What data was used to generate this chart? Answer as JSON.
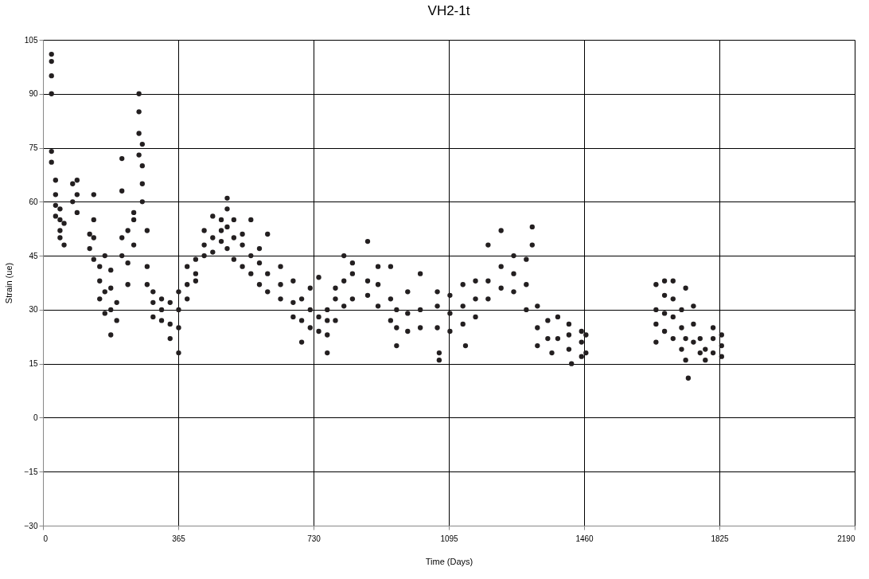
{
  "chart_data": {
    "type": "scatter",
    "title": "VH2-1t",
    "xlabel": "Time (Days)",
    "ylabel": "Strain (ue)",
    "xlim": [
      0,
      2190
    ],
    "xticks": [
      0,
      365,
      730,
      1095,
      1460,
      1825,
      2190
    ],
    "ylim": [
      -30,
      105
    ],
    "yticks": [
      -30,
      -15,
      0,
      15,
      30,
      45,
      60,
      75,
      90,
      105
    ],
    "grid": true,
    "marker": "circle",
    "series": [
      {
        "color": "#231f20",
        "x": [
          23,
          23,
          23,
          23,
          23,
          23,
          34,
          34,
          34,
          34,
          46,
          46,
          46,
          46,
          57,
          57,
          80,
          80,
          92,
          92,
          92,
          126,
          126,
          137,
          137,
          137,
          137,
          153,
          153,
          153,
          167,
          167,
          167,
          183,
          183,
          183,
          183,
          199,
          199,
          213,
          213,
          213,
          213,
          229,
          229,
          229,
          245,
          245,
          245,
          259,
          259,
          259,
          259,
          268,
          268,
          268,
          268,
          281,
          281,
          281,
          297,
          297,
          297,
          320,
          320,
          320,
          343,
          343,
          343,
          366,
          366,
          366,
          366,
          389,
          389,
          389,
          412,
          412,
          412,
          435,
          435,
          435,
          458,
          458,
          458,
          481,
          481,
          481,
          497,
          497,
          497,
          497,
          515,
          515,
          515,
          538,
          538,
          538,
          561,
          561,
          561,
          584,
          584,
          584,
          606,
          606,
          606,
          641,
          641,
          641,
          675,
          675,
          675,
          698,
          698,
          698,
          721,
          721,
          721,
          744,
          744,
          744,
          767,
          767,
          767,
          767,
          789,
          789,
          789,
          812,
          812,
          812,
          835,
          835,
          835,
          876,
          876,
          876,
          904,
          904,
          904,
          938,
          938,
          938,
          954,
          954,
          954,
          984,
          984,
          984,
          1018,
          1018,
          1018,
          1064,
          1064,
          1064,
          1069,
          1069,
          1098,
          1098,
          1098,
          1133,
          1133,
          1133,
          1140,
          1167,
          1167,
          1167,
          1201,
          1201,
          1201,
          1236,
          1236,
          1236,
          1270,
          1270,
          1270,
          1304,
          1304,
          1304,
          1320,
          1320,
          1334,
          1334,
          1334,
          1362,
          1362,
          1373,
          1389,
          1389,
          1419,
          1419,
          1419,
          1426,
          1453,
          1453,
          1453,
          1465,
          1465,
          1654,
          1654,
          1654,
          1654,
          1677,
          1677,
          1677,
          1677,
          1700,
          1700,
          1700,
          1700,
          1723,
          1723,
          1723,
          1734,
          1734,
          1734,
          1741,
          1755,
          1755,
          1755,
          1773,
          1773,
          1787,
          1787,
          1808,
          1808,
          1808,
          1831,
          1831,
          1831
        ],
        "values": [
          101,
          99,
          95,
          90,
          74,
          71,
          66,
          62,
          59,
          56,
          52,
          55,
          58,
          50,
          54,
          48,
          60,
          65,
          57,
          62,
          66,
          51,
          47,
          62,
          55,
          50,
          44,
          38,
          33,
          42,
          29,
          35,
          45,
          23,
          30,
          41,
          36,
          27,
          32,
          63,
          72,
          50,
          45,
          37,
          43,
          52,
          48,
          55,
          57,
          73,
          79,
          90,
          85,
          65,
          70,
          76,
          60,
          52,
          42,
          37,
          32,
          28,
          35,
          27,
          33,
          30,
          22,
          26,
          32,
          18,
          25,
          30,
          35,
          37,
          42,
          33,
          44,
          40,
          38,
          48,
          45,
          52,
          46,
          50,
          56,
          49,
          55,
          52,
          61,
          58,
          53,
          47,
          50,
          55,
          44,
          48,
          42,
          51,
          40,
          45,
          55,
          37,
          43,
          47,
          35,
          40,
          51,
          33,
          37,
          42,
          28,
          32,
          38,
          21,
          27,
          33,
          25,
          30,
          36,
          24,
          28,
          39,
          18,
          23,
          27,
          30,
          27,
          33,
          36,
          31,
          38,
          45,
          33,
          40,
          43,
          34,
          38,
          49,
          31,
          37,
          42,
          27,
          33,
          42,
          20,
          25,
          30,
          24,
          29,
          35,
          25,
          30,
          40,
          25,
          31,
          35,
          16,
          18,
          24,
          29,
          34,
          26,
          31,
          37,
          20,
          28,
          33,
          38,
          33,
          38,
          48,
          36,
          42,
          52,
          35,
          40,
          45,
          30,
          37,
          44,
          53,
          48,
          20,
          25,
          31,
          22,
          27,
          18,
          22,
          28,
          19,
          23,
          26,
          15,
          17,
          21,
          24,
          18,
          23,
          21,
          26,
          30,
          37,
          24,
          29,
          34,
          38,
          22,
          28,
          33,
          38,
          19,
          25,
          30,
          16,
          22,
          36,
          11,
          21,
          26,
          31,
          18,
          22,
          16,
          19,
          18,
          22,
          25,
          17,
          20,
          23
        ]
      }
    ]
  }
}
